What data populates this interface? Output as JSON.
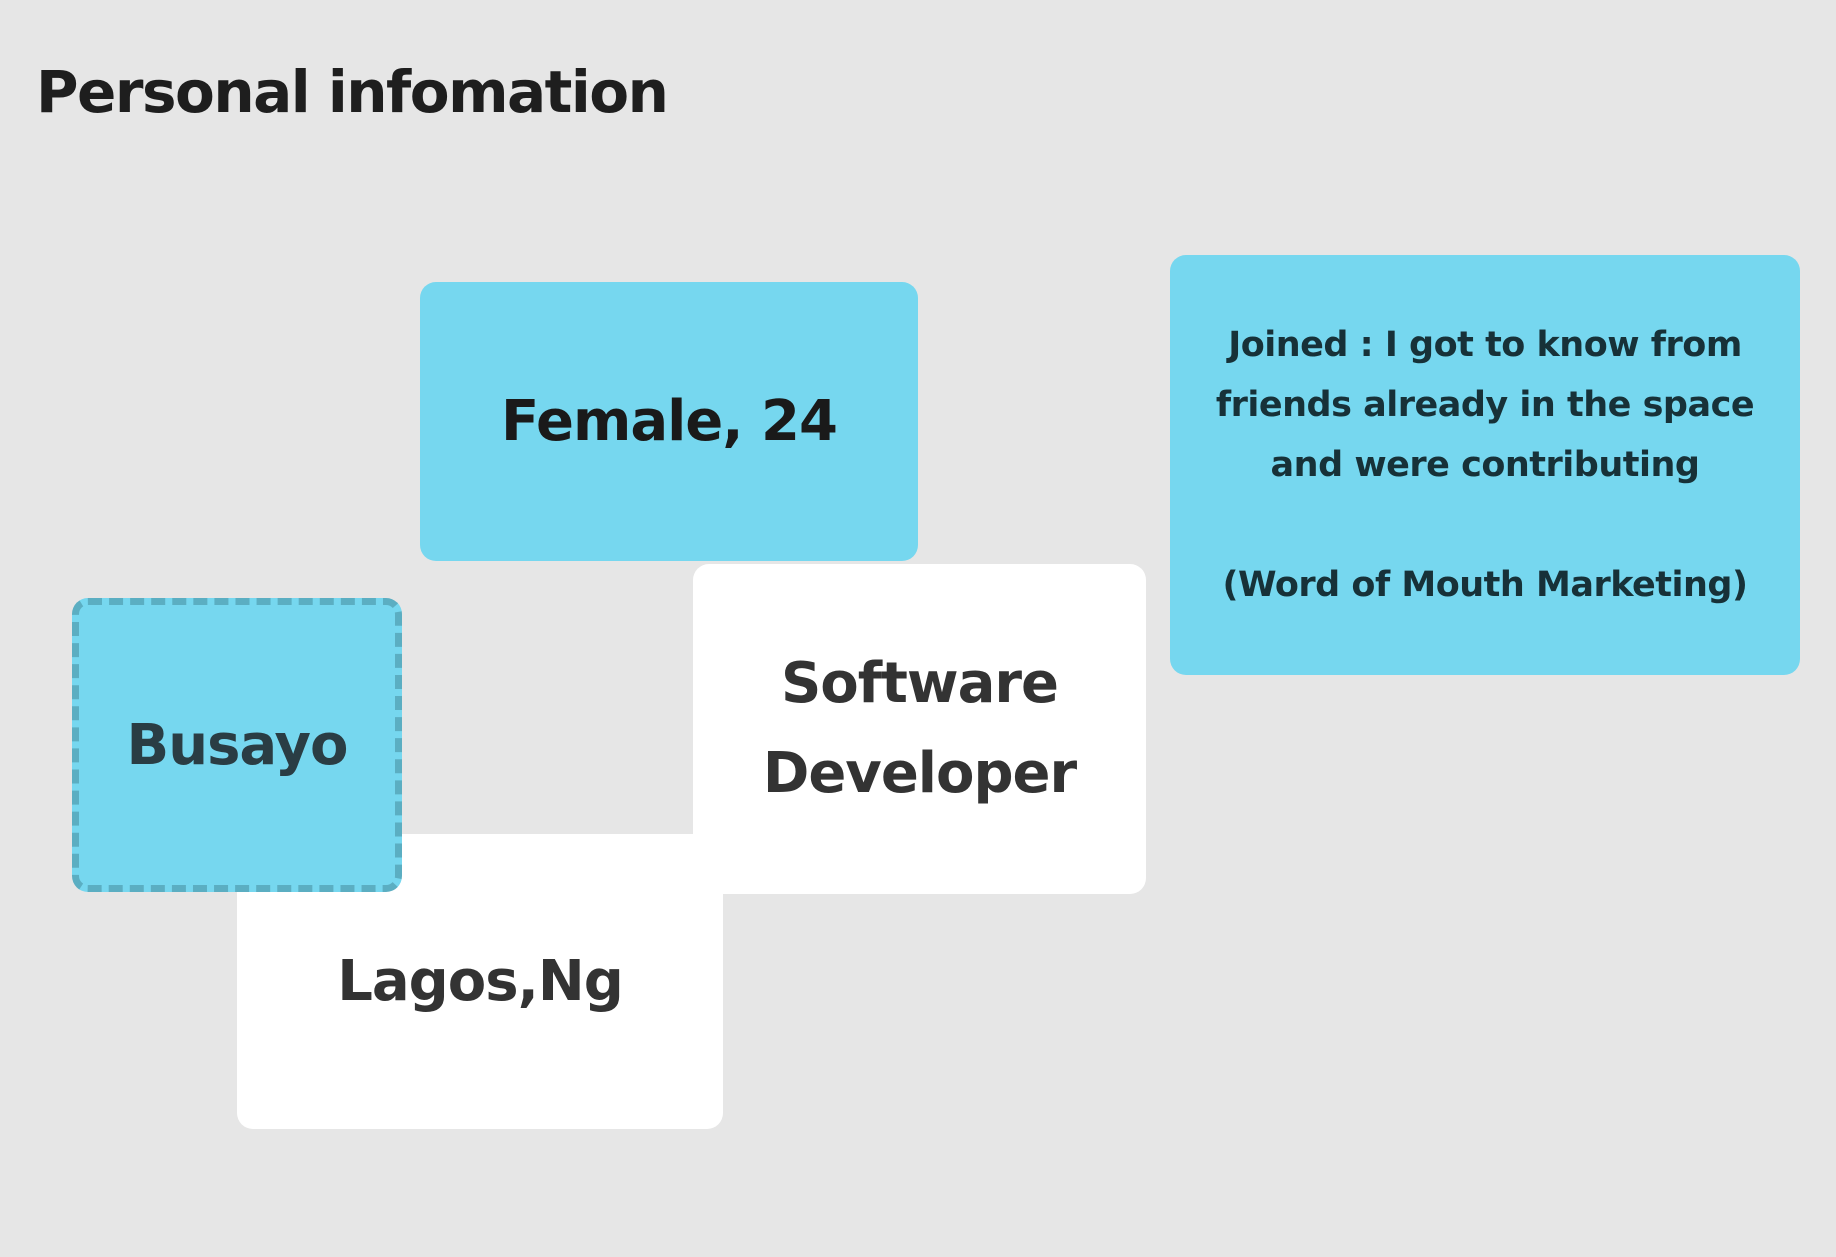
{
  "page": {
    "title": "Personal infomation"
  },
  "cards": {
    "name": "Busayo",
    "gender_age": "Female, 24",
    "occupation_line1": "Software",
    "occupation_line2": "Developer",
    "location": "Lagos,Ng",
    "joined_text": "Joined : I got to know from\nfriends already in the space\nand were contributing",
    "joined_channel": "(Word of Mouth Marketing)"
  },
  "colors": {
    "background": "#e6e6e6",
    "card_blue": "#76d7ef",
    "card_white": "#ffffff",
    "dashed_border": "#5baec2"
  }
}
